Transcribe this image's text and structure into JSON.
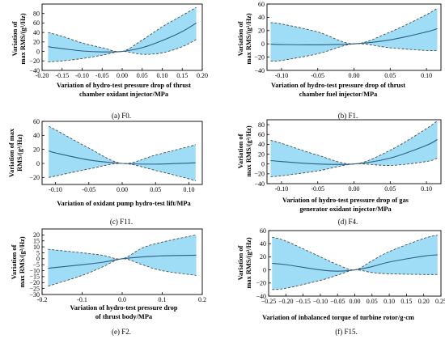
{
  "figure": {
    "captions": [
      {
        "prefix": "(a) ",
        "suffix": "F0."
      },
      {
        "prefix": "(b) ",
        "suffix": "F1."
      },
      {
        "prefix": "(c) ",
        "suffix": "F11."
      },
      {
        "prefix": "(d) ",
        "suffix": "F4."
      },
      {
        "prefix": "(e) ",
        "suffix": "F2."
      },
      {
        "prefix": "(f) ",
        "suffix": "F15."
      }
    ]
  },
  "style": {
    "band_fill": "#9fdcf5",
    "bound_line": "#3a3a3a",
    "mean_line": "#2c5f86",
    "axis": "#000000"
  },
  "chart_data": [
    {
      "type": "area",
      "xlabel_lines": [
        "Variation of hydro-test pressure drop of thrust",
        "chamber oxidant injector/MPa"
      ],
      "ylabel_lines": [
        "Variation of",
        "max RMS/(g²/Hz)"
      ],
      "xlim": [
        -0.2,
        0.2
      ],
      "ylim": [
        -40,
        100
      ],
      "xticks": [
        -0.2,
        -0.15,
        -0.1,
        -0.05,
        0,
        0.05,
        0.1,
        0.15,
        0.2
      ],
      "xtick_labels": [
        "-0.20",
        "-0.15",
        "-0.10",
        "-0.05",
        "0.00",
        "0.05",
        "0.10",
        "0.15",
        "0.20"
      ],
      "yticks": [
        -40,
        -20,
        0,
        20,
        40,
        60,
        80
      ],
      "ytick_labels": [
        "−40",
        "−20",
        "0",
        "20",
        "40",
        "60",
        "80"
      ],
      "x": [
        -0.185,
        -0.15,
        -0.1,
        -0.05,
        0,
        0.05,
        0.1,
        0.15,
        0.185
      ],
      "mean": [
        10,
        6,
        1,
        -1,
        0,
        8,
        23,
        42,
        60
      ],
      "upper": [
        40,
        32,
        18,
        8,
        0,
        24,
        52,
        76,
        93
      ],
      "lower": [
        -22,
        -20,
        -15,
        -8,
        0,
        -6,
        -3,
        10,
        25
      ]
    },
    {
      "type": "area",
      "xlabel_lines": [
        "Variation of hydro-test pressure drop of thrust",
        "chamber fuel injector/MPa"
      ],
      "ylabel_lines": [
        "Variation of",
        "max RMS/(g²/Hz)"
      ],
      "xlim": [
        -0.12,
        0.12
      ],
      "ylim": [
        -40,
        60
      ],
      "xticks": [
        -0.1,
        -0.05,
        0,
        0.05,
        0.1
      ],
      "xtick_labels": [
        "-0.10",
        "-0.05",
        "0.00",
        "0.05",
        "0.10"
      ],
      "yticks": [
        -40,
        -20,
        0,
        20,
        40,
        60
      ],
      "ytick_labels": [
        "−40",
        "−20",
        "0",
        "20",
        "40",
        "60"
      ],
      "x": [
        -0.115,
        -0.1,
        -0.05,
        0,
        0.05,
        0.1,
        0.115
      ],
      "mean": [
        -0.5,
        -1,
        -1.5,
        0,
        6,
        18,
        23
      ],
      "upper": [
        32,
        30,
        18,
        0,
        18,
        44,
        54
      ],
      "lower": [
        -26,
        -25,
        -15,
        0,
        -6,
        -10,
        -10
      ]
    },
    {
      "type": "area",
      "xlabel_lines": [
        "Variation of oxidant pump hydro-test lift/MPa"
      ],
      "ylabel_lines": [
        "Variation of max",
        "RMS/(g²/Hz)"
      ],
      "xlim": [
        -0.12,
        0.12
      ],
      "ylim": [
        -30,
        60
      ],
      "xticks": [
        -0.1,
        -0.05,
        0,
        0.05,
        0.1
      ],
      "xtick_labels": [
        "-0.10",
        "-0.05",
        "0.00",
        "0.05",
        "0.10"
      ],
      "yticks": [
        -20,
        0,
        20,
        40,
        60
      ],
      "ytick_labels": [
        "−20",
        "0",
        "20",
        "40",
        "60"
      ],
      "x": [
        -0.11,
        -0.1,
        -0.05,
        0,
        0.05,
        0.1,
        0.11
      ],
      "mean": [
        18,
        15,
        5,
        0,
        -1,
        0.5,
        1
      ],
      "upper": [
        53,
        48,
        22,
        0,
        12,
        24,
        27
      ],
      "lower": [
        -20,
        -18,
        -8,
        0,
        -10,
        -22,
        -25
      ]
    },
    {
      "type": "area",
      "xlabel_lines": [
        "Variation of hydro-test pressure drop of gas",
        "generator oxidant injector/MPa"
      ],
      "ylabel_lines": [
        "Variation of",
        "max RMS/(g²/Hz)"
      ],
      "xlim": [
        -0.12,
        0.12
      ],
      "ylim": [
        -40,
        90
      ],
      "xticks": [
        -0.1,
        -0.05,
        0,
        0.05,
        0.1
      ],
      "xtick_labels": [
        "-0.10",
        "-0.05",
        "0.00",
        "0.05",
        "0.10"
      ],
      "yticks": [
        -40,
        -20,
        0,
        20,
        40,
        60,
        80
      ],
      "ytick_labels": [
        "−40",
        "−20",
        "0",
        "20",
        "40",
        "60",
        "80"
      ],
      "x": [
        -0.115,
        -0.1,
        -0.05,
        0,
        0.05,
        0.1,
        0.115
      ],
      "mean": [
        7,
        5,
        0,
        0,
        12,
        38,
        50
      ],
      "upper": [
        48,
        42,
        18,
        0,
        28,
        72,
        88
      ],
      "lower": [
        -26,
        -24,
        -14,
        0,
        -3,
        5,
        12
      ]
    },
    {
      "type": "area",
      "xlabel_lines": [
        "Variation of hydro-test pressure drop",
        "of thrust body/MPa"
      ],
      "ylabel_lines": [
        "Variation of",
        "max RMS/(g²/Hz)"
      ],
      "xlim": [
        -0.2,
        0.2
      ],
      "ylim": [
        -30,
        25
      ],
      "xticks": [
        -0.2,
        -0.1,
        0,
        0.1,
        0.2
      ],
      "xtick_labels": [
        "-0.2",
        "-0.1",
        "0.0",
        "0.1",
        "0.2"
      ],
      "yticks": [
        -30,
        -25,
        -20,
        -15,
        -10,
        -5,
        0,
        5,
        10,
        15,
        20
      ],
      "ytick_labels": [
        "−30",
        "−25",
        "−20",
        "−15",
        "−10",
        "−5",
        "0",
        "5",
        "10",
        "15",
        "20"
      ],
      "x": [
        -0.185,
        -0.1,
        -0.05,
        0,
        0.05,
        0.1,
        0.185
      ],
      "mean": [
        -8,
        -5,
        -3,
        0,
        1.5,
        2.5,
        3
      ],
      "upper": [
        8,
        5,
        3,
        0,
        9,
        14,
        20
      ],
      "lower": [
        -23,
        -14,
        -7,
        0,
        -5,
        -10,
        -14
      ]
    },
    {
      "type": "area",
      "xlabel_lines": [
        "Variation of  inbalanced torque of turbine rotor/g·cm"
      ],
      "ylabel_lines": [
        "Variation of",
        "max RMS/(g²/Hz)"
      ],
      "xlim": [
        -0.25,
        0.25
      ],
      "ylim": [
        -40,
        60
      ],
      "xticks": [
        -0.25,
        -0.2,
        -0.15,
        -0.1,
        -0.05,
        0,
        0.05,
        0.1,
        0.15,
        0.2,
        0.25
      ],
      "xtick_labels": [
        "−0.25",
        "−0.20",
        "−0.15",
        "−0.10",
        "−0.05",
        "0.00",
        "0.05",
        "0.10",
        "0.15",
        "0.20",
        "0.25"
      ],
      "yticks": [
        -40,
        -20,
        0,
        20,
        40,
        60
      ],
      "ytick_labels": [
        "−40",
        "−20",
        "0",
        "20",
        "40",
        "60"
      ],
      "x": [
        -0.24,
        -0.2,
        -0.1,
        -0.05,
        0,
        0.05,
        0.1,
        0.2,
        0.24
      ],
      "mean": [
        10,
        8,
        0,
        -2,
        0,
        5,
        12,
        21,
        23
      ],
      "upper": [
        50,
        44,
        20,
        8,
        0,
        14,
        28,
        48,
        53
      ],
      "lower": [
        -30,
        -28,
        -16,
        -8,
        0,
        -4,
        -6,
        -7,
        -7
      ]
    }
  ]
}
